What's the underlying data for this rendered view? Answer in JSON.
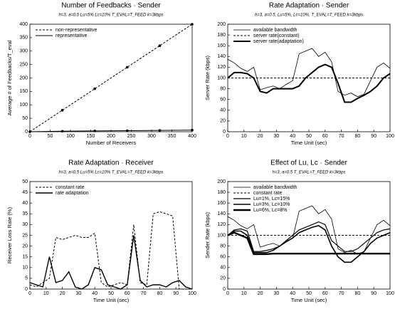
{
  "chart_data": [
    {
      "type": "line",
      "title": "Number of Feedbacks · Sender",
      "subtitle": "h=3, a=0.5 Lu=5% Lc=10% T_EVAL=T_FEED k=3kbps",
      "xlabel": "Number of Receivers",
      "ylabel": "Average # of Feedbacks/T_eval",
      "x": [
        0,
        80,
        160,
        240,
        320,
        400
      ],
      "series": [
        {
          "name": "non-representative",
          "color": "#000000",
          "dash": true,
          "markers": true,
          "values": [
            0,
            80,
            160,
            240,
            320,
            400
          ]
        },
        {
          "name": "representative",
          "color": "#000000",
          "dash": false,
          "markers": true,
          "values": [
            0,
            2,
            3,
            4,
            5,
            6
          ]
        }
      ],
      "xlim": [
        0,
        400
      ],
      "xticks": [
        0,
        50,
        100,
        150,
        200,
        250,
        300,
        350,
        400
      ],
      "ylim": [
        0,
        400
      ],
      "yticks": [
        0,
        50,
        100,
        150,
        200,
        250,
        300,
        350,
        400
      ],
      "legend": "upper left"
    },
    {
      "type": "line",
      "title": "Rate Adaptation · Sender",
      "subtitle": "h=3, a=0.5, Lu=5%, Lc=10%, T_EVAL=T_FEED k=3kbps",
      "xlabel": "Time Unit (sec)",
      "ylabel": "Server Rate (kbps)",
      "x": [
        0,
        4,
        8,
        12,
        16,
        20,
        24,
        28,
        32,
        36,
        40,
        44,
        48,
        52,
        56,
        60,
        64,
        68,
        72,
        76,
        80,
        84,
        88,
        92,
        96,
        100
      ],
      "series": [
        {
          "name": "available bandwidth",
          "color": "#000000",
          "dash": false,
          "width": 0.8,
          "values": [
            135,
            128,
            118,
            112,
            120,
            78,
            82,
            85,
            80,
            88,
            95,
            145,
            150,
            155,
            140,
            148,
            130,
            75,
            68,
            72,
            65,
            70,
            95,
            120,
            128,
            118
          ]
        },
        {
          "name": "server rate(constant)",
          "color": "#000000",
          "dash": true,
          "width": 1,
          "values": [
            100,
            100,
            100,
            100,
            100,
            100,
            100,
            100,
            100,
            100,
            100,
            100,
            100,
            100,
            100,
            100,
            100,
            100,
            100,
            100,
            100,
            100,
            100,
            100,
            100,
            100
          ]
        },
        {
          "name": "server rate(adaptation)",
          "color": "#000000",
          "dash": false,
          "width": 2,
          "values": [
            100,
            110,
            110,
            108,
            100,
            75,
            72,
            80,
            80,
            80,
            80,
            85,
            100,
            110,
            120,
            125,
            120,
            90,
            55,
            55,
            62,
            68,
            75,
            85,
            100,
            108
          ]
        }
      ],
      "xlim": [
        0,
        100
      ],
      "xticks": [
        0,
        10,
        20,
        30,
        40,
        50,
        60,
        70,
        80,
        90,
        100
      ],
      "ylim": [
        0,
        200
      ],
      "yticks": [
        0,
        20,
        40,
        60,
        80,
        100,
        120,
        140,
        160,
        180,
        200
      ],
      "legend": "upper left"
    },
    {
      "type": "line",
      "title": "Rate Adaptation · Receiver",
      "subtitle": "h=3, a=0.5 Lu=5% Lc=10% T_EVAL=T_FEED k=3kbps",
      "xlabel": "Time Unit (sec)",
      "ylabel": "Receiver Loss Rate (%)",
      "x": [
        0,
        4,
        8,
        12,
        16,
        20,
        24,
        28,
        32,
        36,
        40,
        44,
        48,
        52,
        56,
        60,
        64,
        68,
        72,
        76,
        80,
        84,
        88,
        92,
        96,
        100
      ],
      "series": [
        {
          "name": "constant rate",
          "color": "#000000",
          "dash": true,
          "width": 1,
          "values": [
            2,
            1,
            3,
            5,
            24,
            23,
            24,
            25,
            24,
            24,
            26,
            3,
            1,
            2,
            3,
            2,
            30,
            3,
            2,
            35,
            36,
            35,
            34,
            0,
            0,
            0
          ]
        },
        {
          "name": "rate adaptation",
          "color": "#000000",
          "dash": false,
          "width": 1.4,
          "values": [
            3,
            2,
            1,
            15,
            3,
            4,
            8,
            1,
            0,
            2,
            10,
            9,
            2,
            1,
            0,
            2,
            25,
            4,
            1,
            2,
            2,
            1,
            3,
            4,
            1,
            0
          ]
        }
      ],
      "xlim": [
        0,
        100
      ],
      "xticks": [
        0,
        10,
        20,
        30,
        40,
        50,
        60,
        70,
        80,
        90,
        100
      ],
      "ylim": [
        0,
        50
      ],
      "yticks": [
        0,
        5,
        10,
        15,
        20,
        25,
        30,
        35,
        40,
        45,
        50
      ],
      "legend": "upper left"
    },
    {
      "type": "line",
      "title": "Effect of Lu, Lc · Sender",
      "subtitle": "h=3, a=0.5 T_EVAL=T_FEED k=3kbps",
      "xlabel": "Time Unit (sec)",
      "ylabel": "Sender Rate (kbps)",
      "x": [
        0,
        4,
        8,
        12,
        16,
        20,
        24,
        28,
        32,
        36,
        40,
        44,
        48,
        52,
        56,
        60,
        64,
        68,
        72,
        76,
        80,
        84,
        88,
        92,
        96,
        100
      ],
      "series": [
        {
          "name": "available bandwidth",
          "color": "#000000",
          "dash": false,
          "width": 0.8,
          "values": [
            135,
            128,
            118,
            112,
            120,
            78,
            82,
            85,
            80,
            88,
            95,
            145,
            150,
            155,
            140,
            148,
            130,
            75,
            68,
            72,
            65,
            70,
            95,
            120,
            128,
            118
          ]
        },
        {
          "name": "constant rate",
          "color": "#000000",
          "dash": true,
          "width": 1,
          "values": [
            100,
            100,
            100,
            100,
            100,
            100,
            100,
            100,
            100,
            100,
            100,
            100,
            100,
            100,
            100,
            100,
            100,
            100,
            100,
            100,
            100,
            100,
            100,
            100,
            100,
            100
          ]
        },
        {
          "name": "Lu=1%, Lc=15%",
          "color": "#000000",
          "dash": false,
          "width": 1.2,
          "values": [
            100,
            110,
            112,
            108,
            70,
            70,
            72,
            75,
            80,
            90,
            100,
            110,
            115,
            120,
            125,
            120,
            90,
            80,
            70,
            70,
            75,
            85,
            95,
            105,
            110,
            112
          ]
        },
        {
          "name": "Lu=3%, Lc=10%",
          "color": "#000000",
          "dash": false,
          "width": 1.6,
          "values": [
            100,
            108,
            108,
            100,
            68,
            68,
            68,
            72,
            80,
            88,
            95,
            105,
            110,
            115,
            118,
            110,
            80,
            60,
            50,
            50,
            60,
            70,
            85,
            95,
            100,
            105
          ]
        },
        {
          "name": "Lu=6%, Lc=8%",
          "color": "#000000",
          "dash": false,
          "width": 2.4,
          "values": [
            100,
            105,
            100,
            95,
            65,
            65,
            65,
            66,
            66,
            66,
            66,
            66,
            66,
            66,
            66,
            66,
            66,
            66,
            66,
            66,
            66,
            66,
            66,
            66,
            66,
            66
          ]
        }
      ],
      "xlim": [
        0,
        100
      ],
      "xticks": [
        0,
        10,
        20,
        30,
        40,
        50,
        60,
        70,
        80,
        90,
        100
      ],
      "ylim": [
        0,
        200
      ],
      "yticks": [
        0,
        20,
        40,
        60,
        80,
        100,
        120,
        140,
        160,
        180,
        200
      ],
      "legend": "upper left"
    }
  ]
}
